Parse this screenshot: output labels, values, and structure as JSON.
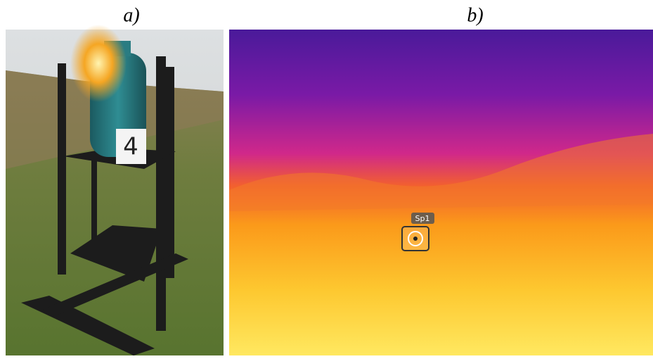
{
  "figure": {
    "panels": [
      {
        "label": "a)",
        "sign": "4"
      },
      {
        "label": "b)",
        "marker": "Sp1"
      }
    ]
  }
}
